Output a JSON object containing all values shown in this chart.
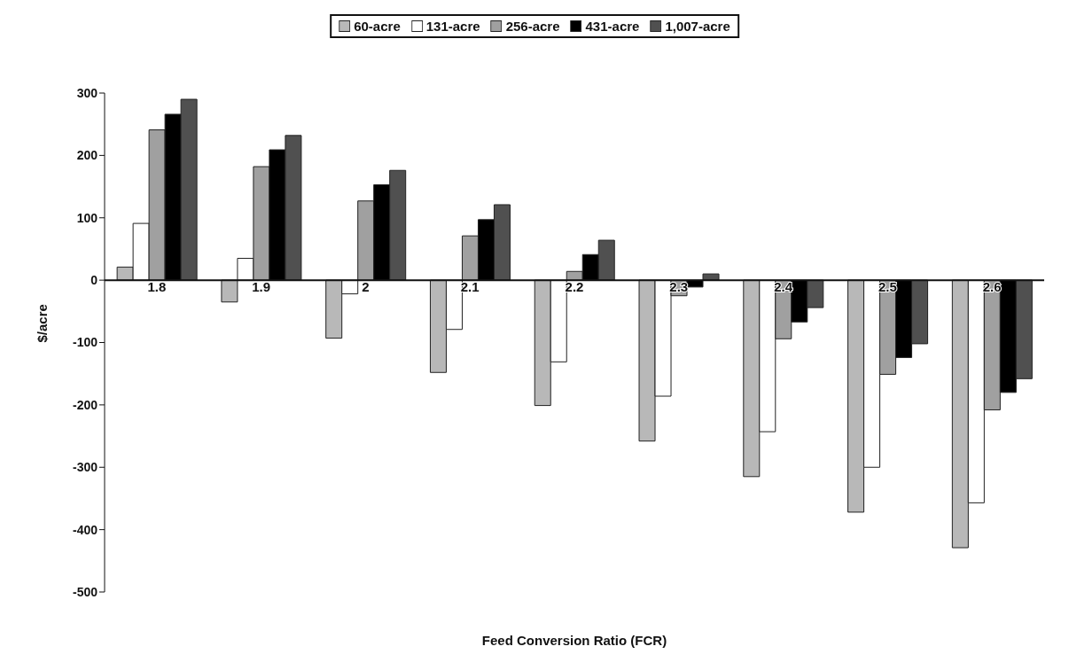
{
  "chart_data": {
    "type": "bar",
    "xlabel": "Feed Conversion Ratio (FCR)",
    "ylabel": "$/acre",
    "categories": [
      "1.8",
      "1.9",
      "2",
      "2.1",
      "2.2",
      "2.3",
      "2.4",
      "2.5",
      "2.6"
    ],
    "series": [
      {
        "name": "60-acre",
        "color": "#b8b8b8",
        "values": [
          21,
          -35,
          -93,
          -148,
          -201,
          -258,
          -315,
          -372,
          -429
        ]
      },
      {
        "name": "131-acre",
        "color": "#ffffff",
        "values": [
          91,
          35,
          -22,
          -79,
          -131,
          -186,
          -243,
          -300,
          -357
        ]
      },
      {
        "name": "256-acre",
        "color": "#a0a0a0",
        "values": [
          241,
          182,
          127,
          71,
          14,
          -25,
          -94,
          -151,
          -208
        ]
      },
      {
        "name": "431-acre",
        "color": "#000000",
        "values": [
          266,
          209,
          153,
          97,
          41,
          -11,
          -67,
          -124,
          -180
        ]
      },
      {
        "name": "1,007-acre",
        "color": "#505050",
        "values": [
          290,
          232,
          176,
          121,
          64,
          10,
          -44,
          -102,
          -158
        ]
      }
    ],
    "ylim": [
      -500,
      300
    ],
    "yticks": [
      -500,
      -400,
      -300,
      -200,
      -100,
      0,
      100,
      200,
      300
    ],
    "legend": "top"
  }
}
